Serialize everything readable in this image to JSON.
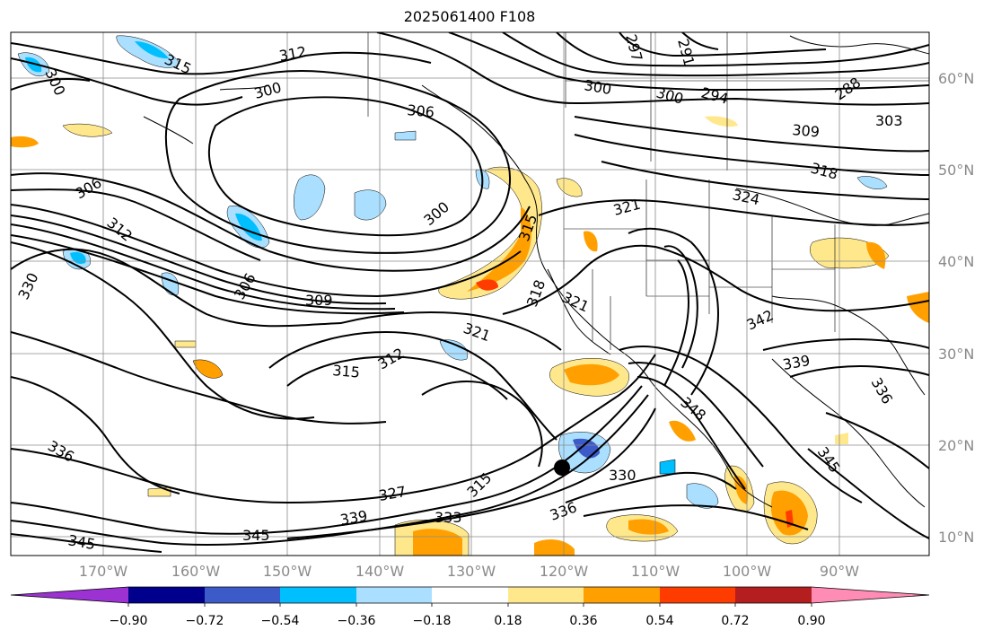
{
  "title": "2025061400 F108",
  "map": {
    "lat_labels": [
      "60°N",
      "50°N",
      "40°N",
      "30°N",
      "20°N",
      "10°N"
    ],
    "lon_labels": [
      "170°W",
      "160°W",
      "150°W",
      "140°W",
      "130°W",
      "120°W",
      "110°W",
      "100°W",
      "90°W"
    ],
    "contour_labels": [
      "315",
      "312",
      "300",
      "300",
      "306",
      "300",
      "294",
      "288",
      "303",
      "309",
      "318",
      "324",
      "306",
      "312",
      "300",
      "315",
      "321",
      "330",
      "306",
      "309",
      "318",
      "321",
      "342",
      "321",
      "312",
      "315",
      "339",
      "336",
      "348",
      "336",
      "345",
      "330",
      "315",
      "327",
      "339",
      "333",
      "336",
      "345",
      "345",
      "291",
      "297",
      "300"
    ],
    "marker": "storm-center"
  },
  "colorbar": {
    "ticks": [
      "−0.90",
      "−0.72",
      "−0.54",
      "−0.36",
      "−0.18",
      "0.18",
      "0.36",
      "0.54",
      "0.72",
      "0.90"
    ],
    "colors": [
      "#9c32d2",
      "#00008c",
      "#3c5ac8",
      "#00bfff",
      "#aadfff",
      "#ffffff",
      "#ffe88c",
      "#ffa000",
      "#ff3c00",
      "#b41e1e",
      "#ff8cb4"
    ]
  }
}
